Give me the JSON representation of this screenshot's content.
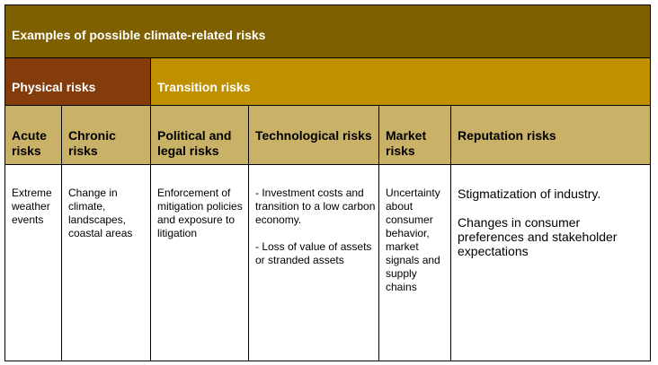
{
  "table": {
    "title": "Examples of possible climate-related risks",
    "groups": {
      "physical": "Physical risks",
      "transition": "Transition risks"
    },
    "headers": [
      "Acute risks",
      "Chronic risks",
      "Political and legal risks",
      "Technological risks",
      "Market risks",
      "Reputation risks"
    ],
    "cells": {
      "acute": "Extreme weather events",
      "chronic": "Change in climate, landscapes, coastal areas",
      "political": "Enforcement of mitigation policies and exposure to litigation",
      "technological_1": "- Investment costs and transition to a low carbon economy.",
      "technological_2": "- Loss of value of assets or stranded assets",
      "market": "Uncertainty about consumer behavior, market signals and supply chains",
      "reputation_1": "Stigmatization of industry.",
      "reputation_2": "Changes in consumer preferences and stakeholder expectations"
    },
    "colors": {
      "title_bg": "#7f6000",
      "physical_bg": "#843c0c",
      "transition_bg": "#bf9000",
      "header_bg": "#c9b267"
    }
  }
}
